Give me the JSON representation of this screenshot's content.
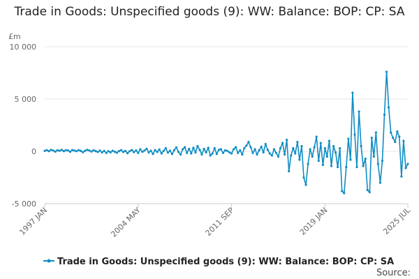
{
  "chart_data": {
    "type": "line",
    "title": "Trade in Goods: Unspecified goods (9): WW: Balance: BOP: CP: SA",
    "unit_label": "£m",
    "ylim": [
      -5000,
      10000
    ],
    "y_ticks": [
      {
        "value": 10000,
        "label": "10 000"
      },
      {
        "value": 5000,
        "label": "5 000"
      },
      {
        "value": 0,
        "label": "0"
      },
      {
        "value": -5000,
        "label": "-5 000"
      }
    ],
    "x_range": [
      "1997-01",
      "2025-07"
    ],
    "x_ticks": [
      {
        "date": "1997-01",
        "label": "1997 JAN"
      },
      {
        "date": "2004-05",
        "label": "2004 MAY"
      },
      {
        "date": "2011-09",
        "label": "2011 SEP"
      },
      {
        "date": "2019-01",
        "label": "2019 JAN"
      },
      {
        "date": "2025-07",
        "label": "2025 JUL"
      }
    ],
    "grid": true,
    "legend_position": "bottom",
    "series": [
      {
        "name": "Trade in Goods: Unspecified goods (9): WW: Balance: BOP: CP: SA",
        "color": "#0f8dc4",
        "points": [
          [
            "1997-01",
            50
          ],
          [
            "1997-03",
            120
          ],
          [
            "1997-05",
            20
          ],
          [
            "1997-07",
            150
          ],
          [
            "1997-09",
            80
          ],
          [
            "1997-11",
            -30
          ],
          [
            "1998-01",
            100
          ],
          [
            "1998-03",
            60
          ],
          [
            "1998-05",
            140
          ],
          [
            "1998-07",
            20
          ],
          [
            "1998-09",
            110
          ],
          [
            "1998-11",
            90
          ],
          [
            "1999-01",
            -40
          ],
          [
            "1999-03",
            130
          ],
          [
            "1999-05",
            70
          ],
          [
            "1999-07",
            10
          ],
          [
            "1999-09",
            120
          ],
          [
            "1999-11",
            40
          ],
          [
            "2000-01",
            -80
          ],
          [
            "2000-03",
            60
          ],
          [
            "2000-05",
            150
          ],
          [
            "2000-07",
            90
          ],
          [
            "2000-09",
            -20
          ],
          [
            "2000-11",
            100
          ],
          [
            "2001-01",
            30
          ],
          [
            "2001-03",
            -60
          ],
          [
            "2001-05",
            80
          ],
          [
            "2001-07",
            -100
          ],
          [
            "2001-09",
            40
          ],
          [
            "2001-11",
            -150
          ],
          [
            "2002-01",
            20
          ],
          [
            "2002-03",
            -90
          ],
          [
            "2002-05",
            60
          ],
          [
            "2002-07",
            -40
          ],
          [
            "2002-09",
            -130
          ],
          [
            "2002-11",
            30
          ],
          [
            "2003-01",
            120
          ],
          [
            "2003-03",
            -60
          ],
          [
            "2003-05",
            40
          ],
          [
            "2003-07",
            -180
          ],
          [
            "2003-09",
            10
          ],
          [
            "2003-11",
            130
          ],
          [
            "2004-01",
            -70
          ],
          [
            "2004-03",
            90
          ],
          [
            "2004-05",
            -150
          ],
          [
            "2004-07",
            200
          ],
          [
            "2004-09",
            -40
          ],
          [
            "2004-11",
            80
          ],
          [
            "2005-01",
            250
          ],
          [
            "2005-03",
            -100
          ],
          [
            "2005-05",
            60
          ],
          [
            "2005-07",
            -250
          ],
          [
            "2005-09",
            120
          ],
          [
            "2005-11",
            -60
          ],
          [
            "2006-01",
            180
          ],
          [
            "2006-03",
            -200
          ],
          [
            "2006-05",
            50
          ],
          [
            "2006-07",
            300
          ],
          [
            "2006-09",
            -120
          ],
          [
            "2006-11",
            60
          ],
          [
            "2007-01",
            -250
          ],
          [
            "2007-03",
            120
          ],
          [
            "2007-05",
            380
          ],
          [
            "2007-07",
            -60
          ],
          [
            "2007-09",
            -300
          ],
          [
            "2007-11",
            200
          ],
          [
            "2008-01",
            400
          ],
          [
            "2008-03",
            -150
          ],
          [
            "2008-05",
            250
          ],
          [
            "2008-07",
            -200
          ],
          [
            "2008-09",
            350
          ],
          [
            "2008-11",
            -100
          ],
          [
            "2009-01",
            500
          ],
          [
            "2009-03",
            150
          ],
          [
            "2009-05",
            -300
          ],
          [
            "2009-07",
            250
          ],
          [
            "2009-09",
            -100
          ],
          [
            "2009-11",
            350
          ],
          [
            "2010-01",
            -400
          ],
          [
            "2010-03",
            -200
          ],
          [
            "2010-05",
            300
          ],
          [
            "2010-07",
            -250
          ],
          [
            "2010-09",
            150
          ],
          [
            "2010-11",
            200
          ],
          [
            "2011-01",
            -150
          ],
          [
            "2011-03",
            100
          ],
          [
            "2011-05",
            50
          ],
          [
            "2011-07",
            -100
          ],
          [
            "2011-09",
            -200
          ],
          [
            "2011-11",
            200
          ],
          [
            "2012-01",
            400
          ],
          [
            "2012-03",
            -150
          ],
          [
            "2012-05",
            100
          ],
          [
            "2012-07",
            -300
          ],
          [
            "2012-09",
            300
          ],
          [
            "2012-11",
            550
          ],
          [
            "2013-01",
            900
          ],
          [
            "2013-03",
            400
          ],
          [
            "2013-05",
            -150
          ],
          [
            "2013-07",
            200
          ],
          [
            "2013-09",
            -300
          ],
          [
            "2013-11",
            100
          ],
          [
            "2014-01",
            450
          ],
          [
            "2014-03",
            -100
          ],
          [
            "2014-05",
            700
          ],
          [
            "2014-07",
            150
          ],
          [
            "2014-09",
            -200
          ],
          [
            "2014-11",
            -400
          ],
          [
            "2015-01",
            200
          ],
          [
            "2015-03",
            -150
          ],
          [
            "2015-05",
            -500
          ],
          [
            "2015-07",
            300
          ],
          [
            "2015-09",
            800
          ],
          [
            "2015-11",
            -300
          ],
          [
            "2016-01",
            1100
          ],
          [
            "2016-03",
            -1900
          ],
          [
            "2016-05",
            -400
          ],
          [
            "2016-07",
            300
          ],
          [
            "2016-09",
            -200
          ],
          [
            "2016-11",
            900
          ],
          [
            "2017-01",
            -800
          ],
          [
            "2017-03",
            500
          ],
          [
            "2017-05",
            -2500
          ],
          [
            "2017-07",
            -3200
          ],
          [
            "2017-09",
            -1200
          ],
          [
            "2017-11",
            200
          ],
          [
            "2018-01",
            -500
          ],
          [
            "2018-03",
            400
          ],
          [
            "2018-05",
            1400
          ],
          [
            "2018-07",
            -900
          ],
          [
            "2018-09",
            800
          ],
          [
            "2018-11",
            -1300
          ],
          [
            "2019-01",
            300
          ],
          [
            "2019-03",
            -500
          ],
          [
            "2019-05",
            1000
          ],
          [
            "2019-07",
            -1400
          ],
          [
            "2019-09",
            500
          ],
          [
            "2019-11",
            -100
          ],
          [
            "2020-01",
            -1500
          ],
          [
            "2020-03",
            300
          ],
          [
            "2020-05",
            -3800
          ],
          [
            "2020-07",
            -4000
          ],
          [
            "2020-09",
            -1500
          ],
          [
            "2020-11",
            1200
          ],
          [
            "2021-01",
            -800
          ],
          [
            "2021-03",
            5600
          ],
          [
            "2021-05",
            1600
          ],
          [
            "2021-07",
            -1500
          ],
          [
            "2021-09",
            3800
          ],
          [
            "2021-11",
            500
          ],
          [
            "2022-01",
            -1400
          ],
          [
            "2022-03",
            -700
          ],
          [
            "2022-05",
            -3700
          ],
          [
            "2022-07",
            -3900
          ],
          [
            "2022-09",
            1300
          ],
          [
            "2022-11",
            -500
          ],
          [
            "2023-01",
            1800
          ],
          [
            "2023-03",
            -1200
          ],
          [
            "2023-05",
            -3000
          ],
          [
            "2023-07",
            -900
          ],
          [
            "2023-09",
            3500
          ],
          [
            "2023-11",
            7600
          ],
          [
            "2024-01",
            4200
          ],
          [
            "2024-03",
            1800
          ],
          [
            "2024-05",
            1300
          ],
          [
            "2024-07",
            900
          ],
          [
            "2024-09",
            1900
          ],
          [
            "2024-11",
            1400
          ],
          [
            "2025-01",
            -2400
          ],
          [
            "2025-03",
            1000
          ],
          [
            "2025-05",
            -1600
          ],
          [
            "2025-07",
            -1200
          ]
        ]
      }
    ]
  },
  "legend": {
    "label": "Trade in Goods: Unspecified goods (9): WW: Balance: BOP: CP: SA"
  },
  "source_label": "Source:"
}
